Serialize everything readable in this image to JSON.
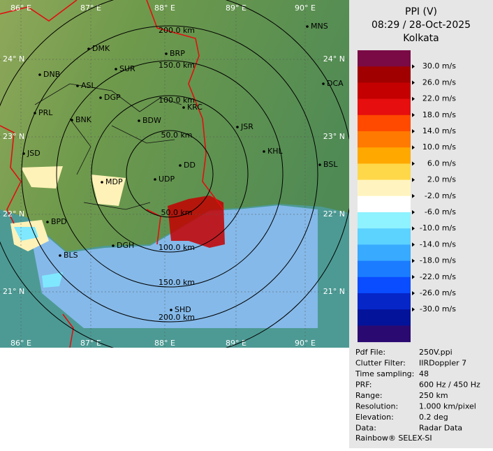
{
  "legend": {
    "title": "PPI (V)",
    "time": "08:29 / 28-Oct-2025",
    "station": "Kolkata",
    "band_colors": [
      "#7a0a45",
      "#a00000",
      "#c40000",
      "#e60e0e",
      "#ff4a00",
      "#ff7a00",
      "#ffa800",
      "#ffd84a",
      "#fff4c0",
      "#ffffff",
      "#8ef2ff",
      "#5cd2ff",
      "#38aaff",
      "#1b7cff",
      "#0a4cff",
      "#0626c8",
      "#03139a",
      "#2a0a70"
    ],
    "labels": [
      "30.0 m/s",
      "26.0 m/s",
      "22.0 m/s",
      "18.0 m/s",
      "14.0 m/s",
      "10.0 m/s",
      "6.0 m/s",
      "2.0 m/s",
      "-2.0 m/s",
      "-6.0 m/s",
      "-10.0 m/s",
      "-14.0 m/s",
      "-18.0 m/s",
      "-22.0 m/s",
      "-26.0 m/s",
      "-30.0 m/s"
    ]
  },
  "info": {
    "rows": [
      [
        "Pdf File:",
        "250V.ppi"
      ],
      [
        "Clutter Filter:",
        "IIRDoppler 7"
      ],
      [
        "Time sampling:",
        "48"
      ],
      [
        "PRF:",
        "600 Hz / 450 Hz"
      ],
      [
        "Range:",
        "250 km"
      ],
      [
        "Resolution:",
        "1.000 km/pixel"
      ],
      [
        "Elevation:",
        "0.2 deg"
      ],
      [
        "Data:",
        "Radar Data"
      ]
    ],
    "footer": "Rainbow® SELEX-SI"
  },
  "map": {
    "lon_top": [
      "86° E",
      "87° E",
      "88° E",
      "89° E",
      "90° E"
    ],
    "lon_bottom": [
      "86° E",
      "87° E",
      "88° E",
      "89° E",
      "90° E"
    ],
    "lat_left": [
      "24° N",
      "23° N",
      "22° N",
      "21° N"
    ],
    "lat_right": [
      "24° N",
      "23° N",
      "22° N",
      "21° N"
    ],
    "rings_upper": [
      "50.0 km",
      "100.0 km",
      "150.0 km",
      "200.0 km"
    ],
    "rings_lower": [
      "50.0 km",
      "100.0 km",
      "150.0 km",
      "200.0 km"
    ],
    "cities": [
      "MNS",
      "DMK",
      "BRP",
      "DNB",
      "SUR",
      "ASL",
      "DGP",
      "DCA",
      "KRC",
      "PRL",
      "BNK",
      "BDW",
      "JSR",
      "JSD",
      "KHL",
      "DD",
      "UDP",
      "BSL",
      "MDP",
      "BPD",
      "DGH",
      "BLS",
      "SHD"
    ]
  }
}
